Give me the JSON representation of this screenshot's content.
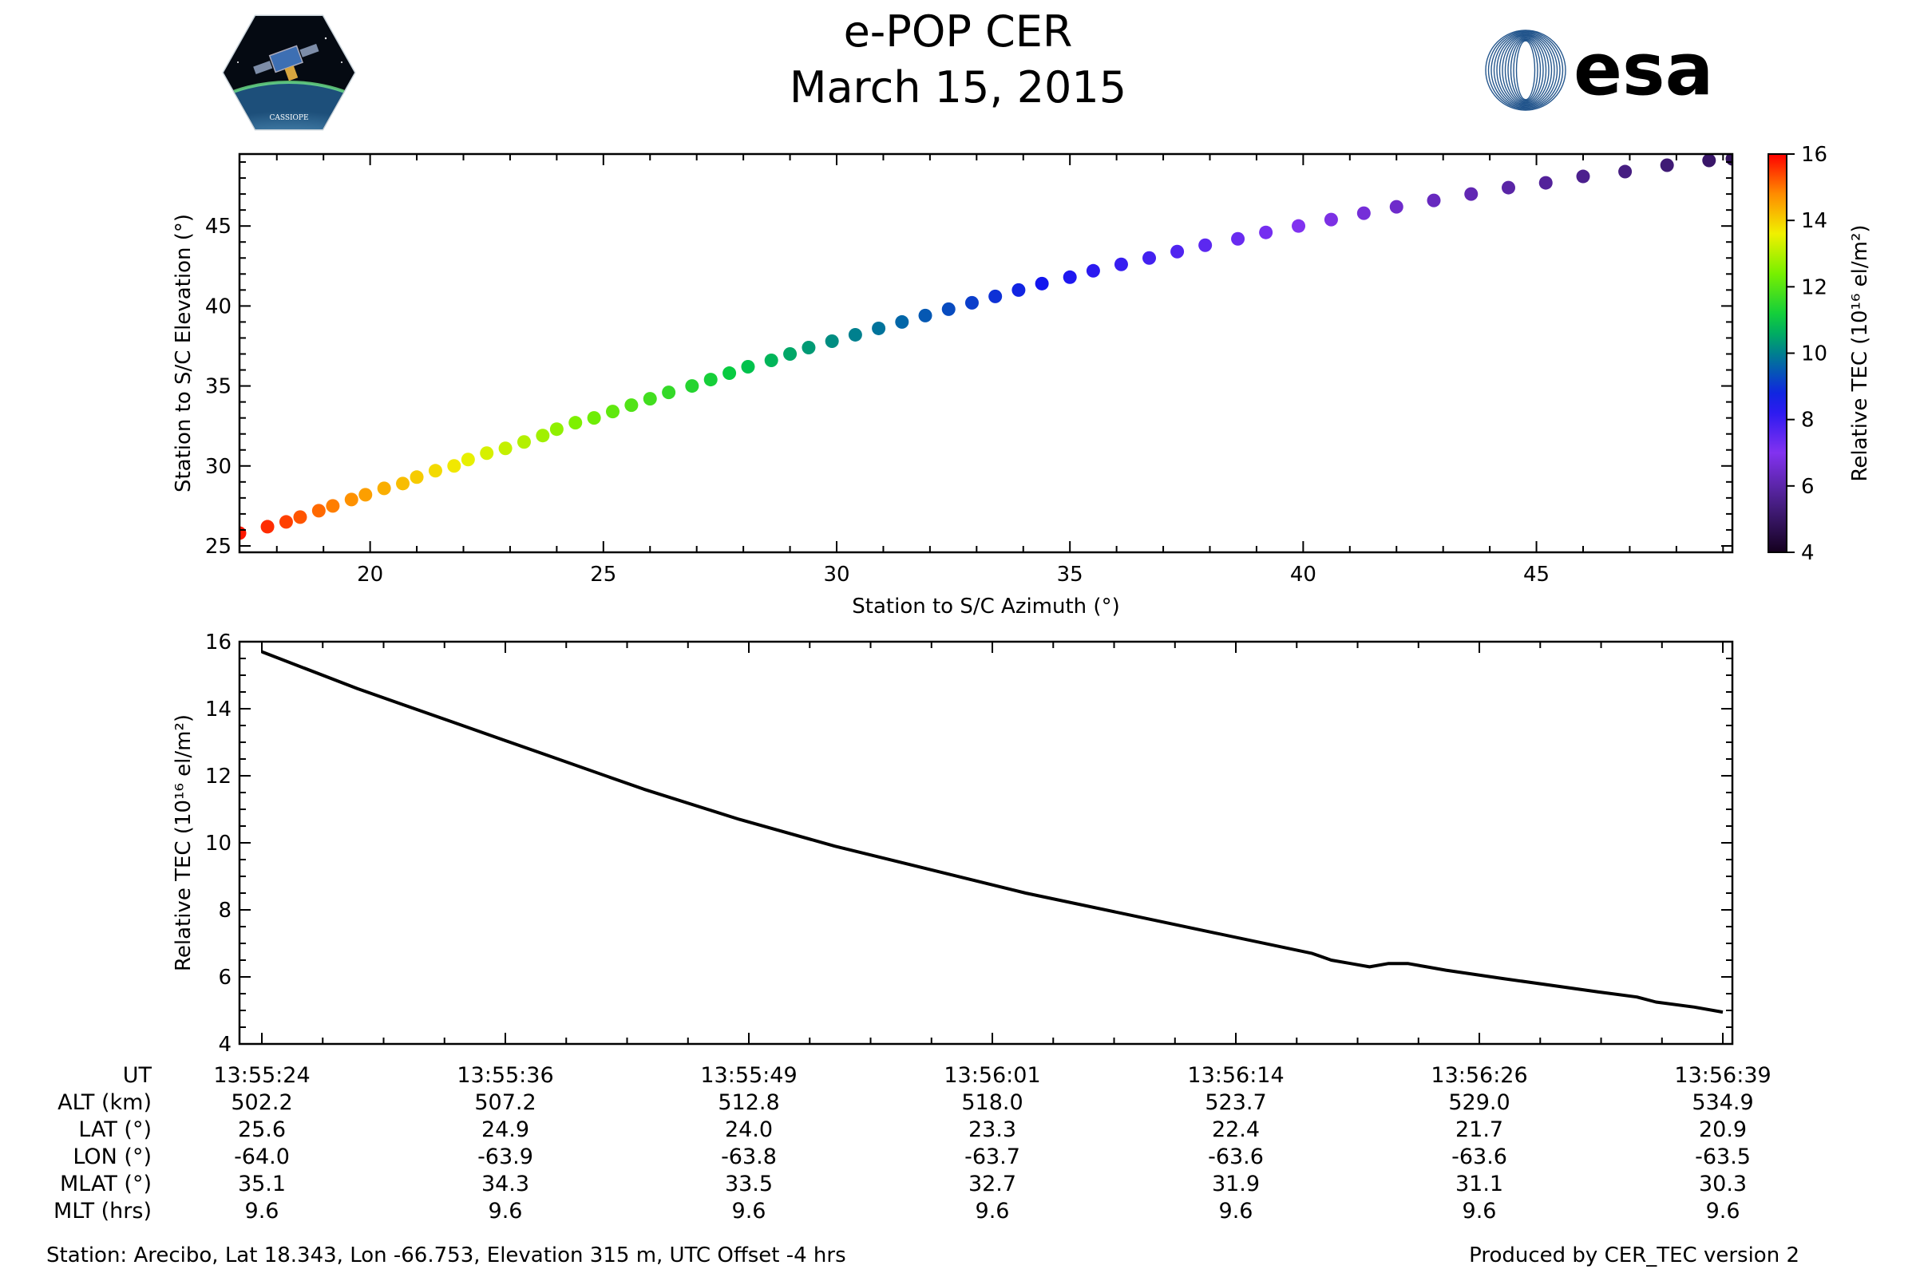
{
  "header": {
    "title": "e-POP CER",
    "date": "March 15, 2015",
    "left_logo_text": "CASSIOPE",
    "right_logo_text": "esa"
  },
  "colors": {
    "esa_blue": "#003b7a",
    "line": "#000000"
  },
  "chart_data": [
    {
      "type": "scatter",
      "xlabel": "Station to S/C Azimuth (°)",
      "ylabel": "Station to S/C Elevation (°)",
      "xlim": [
        17.2,
        49.2
      ],
      "ylim": [
        24.6,
        49.5
      ],
      "xticks": [
        20,
        25,
        30,
        35,
        40,
        45
      ],
      "yticks": [
        25,
        30,
        35,
        40,
        45
      ],
      "points": {
        "azimuth": [
          17.2,
          17.8,
          18.2,
          18.5,
          18.9,
          19.2,
          19.6,
          19.9,
          20.3,
          20.7,
          21.0,
          21.4,
          21.8,
          22.1,
          22.5,
          22.9,
          23.3,
          23.7,
          24.0,
          24.4,
          24.8,
          25.2,
          25.6,
          26.0,
          26.4,
          26.9,
          27.3,
          27.7,
          28.1,
          28.6,
          29.0,
          29.4,
          29.9,
          30.4,
          30.9,
          31.4,
          31.9,
          32.4,
          32.9,
          33.4,
          33.9,
          34.4,
          35.0,
          35.5,
          36.1,
          36.7,
          37.3,
          37.9,
          38.6,
          39.2,
          39.9,
          40.6,
          41.3,
          42.0,
          42.8,
          43.6,
          44.4,
          45.2,
          46.0,
          46.9,
          47.8,
          48.7,
          49.2
        ],
        "elevation": [
          25.8,
          26.2,
          26.5,
          26.8,
          27.2,
          27.5,
          27.9,
          28.2,
          28.6,
          28.9,
          29.3,
          29.7,
          30.0,
          30.4,
          30.8,
          31.1,
          31.5,
          31.9,
          32.3,
          32.7,
          33.0,
          33.4,
          33.8,
          34.2,
          34.6,
          35.0,
          35.4,
          35.8,
          36.2,
          36.6,
          37.0,
          37.4,
          37.8,
          38.2,
          38.6,
          39.0,
          39.4,
          39.8,
          40.2,
          40.6,
          41.0,
          41.4,
          41.8,
          42.2,
          42.6,
          43.0,
          43.4,
          43.8,
          44.2,
          44.6,
          45.0,
          45.4,
          45.8,
          46.2,
          46.6,
          47.0,
          47.4,
          47.7,
          48.1,
          48.4,
          48.8,
          49.1,
          49.2
        ]
      },
      "colorbar": {
        "label": "Relative TEC (10¹⁶ el/m²)",
        "range": [
          4,
          16
        ],
        "ticks": [
          4,
          6,
          8,
          10,
          12,
          14,
          16
        ]
      }
    },
    {
      "type": "line",
      "ylabel": "Relative TEC (10¹⁶ el/m²)",
      "ylim": [
        4,
        16
      ],
      "yticks": [
        4,
        6,
        8,
        10,
        12,
        14,
        16
      ],
      "xlim_seconds": [
        0,
        77
      ],
      "series": [
        {
          "name": "Relative TEC",
          "t": [
            0,
            5,
            10,
            15,
            20,
            25,
            30,
            35,
            40,
            45,
            50,
            55,
            56,
            57,
            58,
            59,
            60,
            61,
            62,
            65,
            70,
            72,
            73,
            75,
            76.5
          ],
          "values": [
            15.7,
            14.6,
            13.6,
            12.6,
            11.6,
            10.7,
            9.9,
            9.2,
            8.5,
            7.9,
            7.3,
            6.7,
            6.5,
            6.4,
            6.3,
            6.4,
            6.4,
            6.3,
            6.2,
            5.95,
            5.55,
            5.4,
            5.25,
            5.1,
            4.95
          ]
        }
      ],
      "table": {
        "labels": [
          "UT",
          "ALT (km)",
          "LAT (°)",
          "LON (°)",
          "MLAT (°)",
          "MLT (hrs)"
        ],
        "tick_seconds": [
          0,
          12.75,
          25.5,
          38.25,
          51,
          63.75,
          76.5
        ],
        "columns": [
          [
            "13:55:24",
            "502.2",
            "25.6",
            "-64.0",
            "35.1",
            "9.6"
          ],
          [
            "13:55:36",
            "507.2",
            "24.9",
            "-63.9",
            "34.3",
            "9.6"
          ],
          [
            "13:55:49",
            "512.8",
            "24.0",
            "-63.8",
            "33.5",
            "9.6"
          ],
          [
            "13:56:01",
            "518.0",
            "23.3",
            "-63.7",
            "32.7",
            "9.6"
          ],
          [
            "13:56:14",
            "523.7",
            "22.4",
            "-63.6",
            "31.9",
            "9.6"
          ],
          [
            "13:56:26",
            "529.0",
            "21.7",
            "-63.6",
            "31.1",
            "9.6"
          ],
          [
            "13:56:39",
            "534.9",
            "20.9",
            "-63.5",
            "30.3",
            "9.6"
          ]
        ]
      }
    }
  ],
  "footer": {
    "station": "Station: Arecibo, Lat 18.343, Lon -66.753, Elevation 315 m, UTC Offset -4 hrs",
    "produced_by": "Produced by CER_TEC version 2"
  }
}
